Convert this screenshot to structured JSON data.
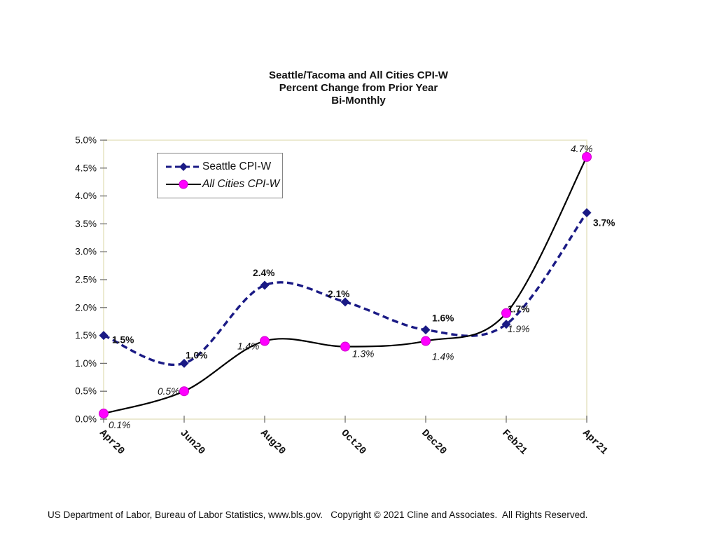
{
  "title": {
    "line1": "Seattle/Tacoma and All Cities CPI-W",
    "line2": "Percent Change from Prior Year",
    "line3": "Bi-Monthly"
  },
  "footer": {
    "text": "US Department of Labor, Bureau of Labor Statistics, www.bls.gov.   Copyright © 2021 Cline and Associates.  All Rights Reserved."
  },
  "colors": {
    "seattle_line": "#1a1a85",
    "all_cities_line": "#000000",
    "all_cities_marker": "#ff00ff",
    "all_cities_marker_edge": "#cc00cc",
    "plot_border": "#e8e5c6",
    "tick": "#707070",
    "label_text": "#111111"
  },
  "chart_data": {
    "type": "line",
    "title": "Seattle/Tacoma and All Cities CPI-W — Percent Change from Prior Year — Bi-Monthly",
    "categories": [
      "Apr20",
      "Jun20",
      "Aug20",
      "Oct20",
      "Dec20",
      "Feb21",
      "Apr21"
    ],
    "series": [
      {
        "name": "Seattle CPI-W",
        "values": [
          1.5,
          1.0,
          2.4,
          2.1,
          1.6,
          1.7,
          3.7
        ],
        "labels": [
          "1.5%",
          "1.0%",
          "2.4%",
          "2.1%",
          "1.6%",
          "1.7%",
          "3.7%"
        ],
        "line_style": "dashed",
        "marker": "diamond",
        "label_style": "bold"
      },
      {
        "name": "All Cities CPI-W",
        "values": [
          0.1,
          0.5,
          1.4,
          1.3,
          1.4,
          1.9,
          4.7
        ],
        "labels": [
          "0.1%",
          "0.5%",
          "1.4%",
          "1.3%",
          "1.4%",
          "1.9%",
          "4.7%"
        ],
        "line_style": "solid",
        "marker": "circle",
        "label_style": "italic"
      }
    ],
    "xlabel": "",
    "ylabel": "",
    "ylim": [
      0,
      5
    ],
    "ytick_step": 0.5,
    "ytick_labels": [
      "0.0%",
      "0.5%",
      "1.0%",
      "1.5%",
      "2.0%",
      "2.5%",
      "3.0%",
      "3.5%",
      "4.0%",
      "4.5%",
      "5.0%"
    ],
    "grid": false,
    "smooth": true,
    "legend_position": "upper-left-inside"
  }
}
